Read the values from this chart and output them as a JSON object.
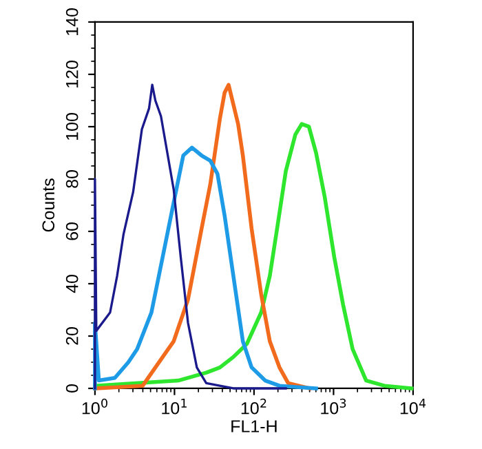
{
  "chart_data": {
    "type": "line",
    "xlabel": "FL1-H",
    "ylabel": "Counts",
    "log": "x",
    "xlim": [
      1,
      10000
    ],
    "xticks": [
      {
        "value": 1,
        "label": "10$^{0}$"
      },
      {
        "value": 10,
        "label": "10$^{1}$"
      },
      {
        "value": 100,
        "label": "10$^{2}$"
      },
      {
        "value": 1000,
        "label": "10$^{3}$"
      },
      {
        "value": 10000,
        "label": "10$^{4}$"
      }
    ],
    "ylim": [
      0,
      140
    ],
    "yticks": [
      0,
      20,
      40,
      60,
      80,
      100,
      120,
      140
    ],
    "grid": false,
    "marker": "none",
    "line_style": "solid",
    "series": [
      {
        "color": "#1a1a8c",
        "x": [
          1,
          1,
          1.04,
          1.55,
          1.9,
          2.29,
          3.02,
          3.89,
          4.79,
          5.25,
          5.75,
          6.76,
          8.13,
          9.77,
          12.0,
          14.8,
          19.1,
          25.1,
          55,
          251
        ],
        "values": [
          0,
          80,
          22,
          29,
          43,
          59,
          75,
          99,
          107,
          116,
          110,
          104,
          90,
          76,
          50,
          25,
          8,
          2,
          0,
          0
        ]
      },
      {
        "color": "#1e9be6",
        "x": [
          1,
          1,
          1.12,
          1.78,
          2.63,
          3.39,
          5.13,
          7.08,
          9.77,
          12.9,
          16.6,
          21.9,
          28.2,
          34.7,
          42.7,
          55,
          72.4,
          93.3,
          138,
          209,
          603
        ],
        "values": [
          0,
          25,
          3,
          4,
          10,
          15,
          29,
          50,
          71,
          89,
          92,
          89,
          87,
          82,
          66,
          43,
          18,
          8,
          3,
          1,
          0
        ]
      },
      {
        "color": "#f26b1d",
        "x": [
          1,
          3.98,
          5.75,
          9.77,
          14.8,
          21.9,
          28.2,
          37.2,
          42.7,
          47.9,
          63.1,
          72.4,
          93.3,
          123,
          158,
          209,
          269,
          501
        ],
        "values": [
          0,
          1,
          8,
          18,
          34,
          61,
          78,
          103,
          113,
          116,
          101,
          89,
          61,
          36,
          18,
          8,
          2,
          0
        ]
      },
      {
        "color": "#2ee62e",
        "x": [
          1,
          11.2,
          25.1,
          37.2,
          55,
          81.3,
          123,
          158,
          195,
          251,
          331,
          398,
          490,
          603,
          776,
          1023,
          1318,
          1738,
          2570,
          4365,
          9550
        ],
        "values": [
          1,
          3,
          6,
          8,
          12,
          17,
          29,
          43,
          61,
          83,
          97,
          101,
          100,
          90,
          73,
          50,
          32,
          15,
          3,
          1,
          0
        ]
      }
    ]
  }
}
